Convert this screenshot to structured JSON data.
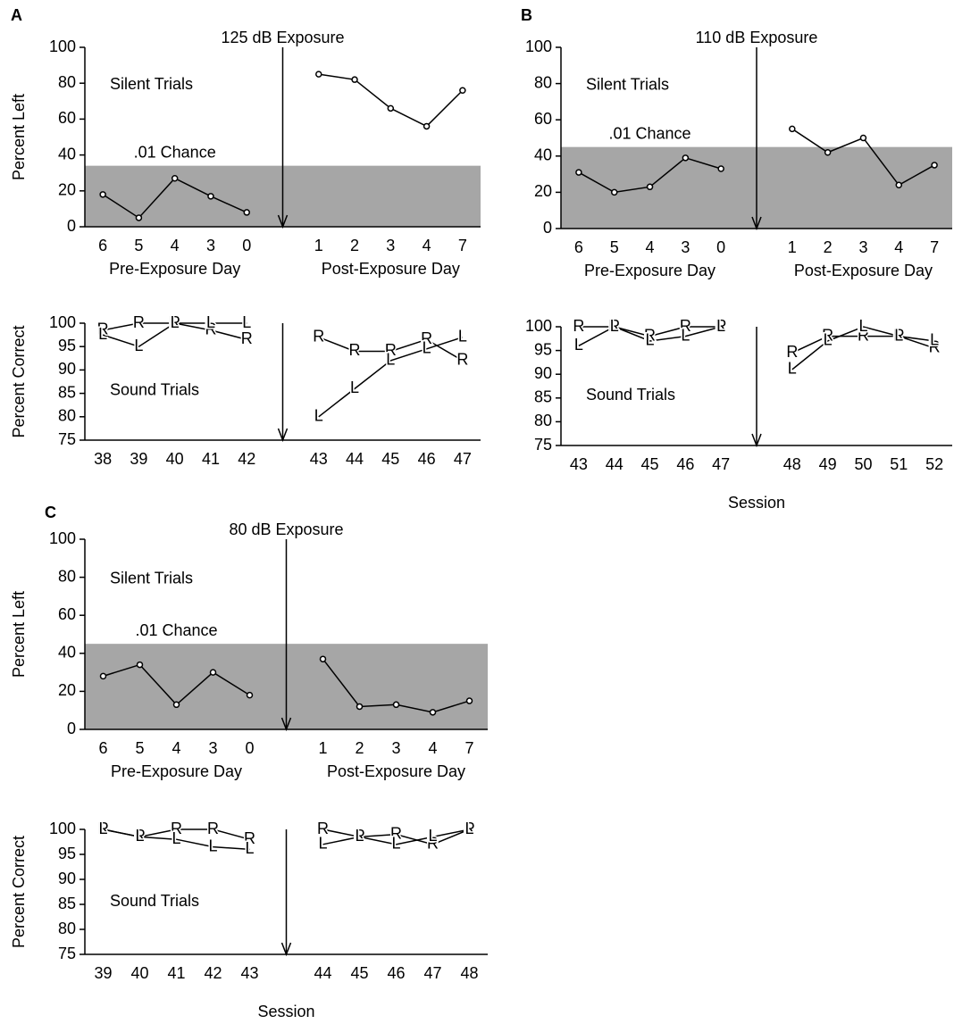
{
  "chart_data": [
    {
      "type": "line",
      "panel": "A",
      "annotation": "125 dB Exposure",
      "title": "Silent Trials",
      "chance_label": ".01 Chance",
      "chance": 34,
      "chance_color": "#a6a6a6",
      "ylabel": "Percent Left",
      "ylim": [
        0,
        100
      ],
      "yticks": [
        0,
        20,
        40,
        60,
        80,
        100
      ],
      "color": "#000000",
      "categories": [
        6,
        5,
        4,
        3,
        0,
        null,
        1,
        2,
        3,
        4,
        7
      ],
      "values": [
        18,
        5,
        27,
        17,
        8,
        null,
        85,
        82,
        66,
        56,
        76
      ],
      "xgroup_labels": [
        "Pre-Exposure Day",
        "Post-Exposure Day"
      ]
    },
    {
      "type": "letters",
      "title": "Sound Trials",
      "ylabel": "Percent Correct",
      "ylim": [
        75,
        100
      ],
      "yticks": [
        75,
        80,
        85,
        90,
        95,
        100
      ],
      "categories": [
        38,
        39,
        40,
        41,
        42,
        null,
        43,
        44,
        45,
        46,
        47
      ],
      "series": [
        {
          "name": "R",
          "color": "#000000",
          "values": [
            98.5,
            100,
            100,
            98.5,
            96.5,
            null,
            97,
            94,
            94,
            96.5,
            92
          ]
        },
        {
          "name": "L",
          "color": "#000000",
          "values": [
            97.5,
            95,
            100,
            100,
            100,
            null,
            80,
            86,
            92,
            94.5,
            97
          ]
        }
      ]
    },
    {
      "type": "line",
      "panel": "B",
      "annotation": "110 dB Exposure",
      "title": "Silent Trials",
      "chance_label": ".01 Chance",
      "chance": 45,
      "chance_color": "#a6a6a6",
      "ylim": [
        0,
        100
      ],
      "yticks": [
        0,
        20,
        40,
        60,
        80,
        100
      ],
      "color": "#000000",
      "categories": [
        6,
        5,
        4,
        3,
        0,
        null,
        1,
        2,
        3,
        4,
        7
      ],
      "values": [
        31,
        20,
        23,
        39,
        33,
        null,
        55,
        42,
        50,
        24,
        35
      ],
      "xgroup_labels": [
        "Pre-Exposure Day",
        "Post-Exposure Day"
      ]
    },
    {
      "type": "letters",
      "title": "Sound Trials",
      "xlabel": "Session",
      "ylim": [
        75,
        100
      ],
      "yticks": [
        75,
        80,
        85,
        90,
        95,
        100
      ],
      "categories": [
        43,
        44,
        45,
        46,
        47,
        null,
        48,
        49,
        50,
        51,
        52
      ],
      "series": [
        {
          "name": "R",
          "color": "#000000",
          "values": [
            100,
            100,
            98,
            100,
            100,
            null,
            94.5,
            98,
            98,
            98,
            95.5
          ]
        },
        {
          "name": "L",
          "color": "#000000",
          "values": [
            96,
            100,
            97,
            98,
            100,
            null,
            91,
            97,
            100,
            98,
            97
          ]
        }
      ]
    },
    {
      "type": "line",
      "panel": "C",
      "annotation": "80 dB Exposure",
      "title": "Silent Trials",
      "chance_label": ".01 Chance",
      "chance": 45,
      "chance_color": "#a6a6a6",
      "ylabel": "Percent Left",
      "ylim": [
        0,
        100
      ],
      "yticks": [
        0,
        20,
        40,
        60,
        80,
        100
      ],
      "color": "#000000",
      "categories": [
        6,
        5,
        4,
        3,
        0,
        null,
        1,
        2,
        3,
        4,
        7
      ],
      "values": [
        28,
        34,
        13,
        30,
        18,
        null,
        37,
        12,
        13,
        9,
        15
      ],
      "xgroup_labels": [
        "Pre-Exposure Day",
        "Post-Exposure Day"
      ]
    },
    {
      "type": "letters",
      "title": "Sound Trials",
      "xlabel": "Session",
      "ylabel": "Percent Correct",
      "ylim": [
        75,
        100
      ],
      "yticks": [
        75,
        80,
        85,
        90,
        95,
        100
      ],
      "categories": [
        39,
        40,
        41,
        42,
        43,
        null,
        44,
        45,
        46,
        47,
        48
      ],
      "series": [
        {
          "name": "R",
          "color": "#000000",
          "values": [
            100,
            98.5,
            100,
            100,
            98,
            null,
            100,
            98.5,
            99,
            97,
            100
          ]
        },
        {
          "name": "L",
          "color": "#000000",
          "values": [
            100,
            98.5,
            98,
            96.5,
            96,
            null,
            97,
            98.5,
            97,
            98.5,
            100
          ]
        }
      ]
    }
  ]
}
